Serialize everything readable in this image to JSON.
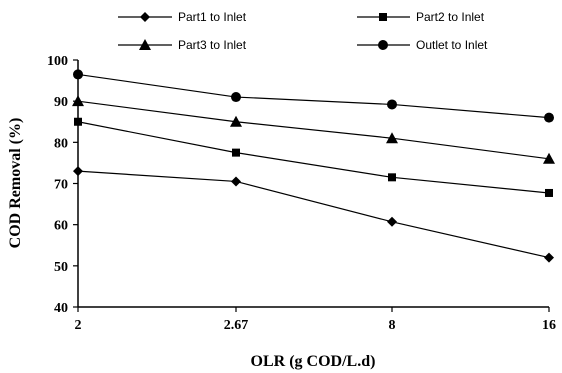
{
  "chart_data": {
    "type": "line",
    "xlabel": "OLR (g COD/L.d)",
    "ylabel": "COD Removal (%)",
    "categories": [
      "2",
      "2.67",
      "8",
      "16"
    ],
    "ylim": [
      40,
      100
    ],
    "yticks": [
      "40",
      "50",
      "60",
      "70",
      "80",
      "90",
      "100"
    ],
    "grid": false,
    "legend_position": "top",
    "series": [
      {
        "name": "Part1 to Inlet",
        "marker": "diamond",
        "values": [
          73,
          70.5,
          60.7,
          52
        ]
      },
      {
        "name": "Part2 to Inlet",
        "marker": "square",
        "values": [
          85,
          77.5,
          71.5,
          67.7
        ]
      },
      {
        "name": "Part3 to Inlet",
        "marker": "triangle",
        "values": [
          90,
          85,
          81,
          76
        ]
      },
      {
        "name": "Outlet to Inlet",
        "marker": "circle",
        "values": [
          96.5,
          91,
          89.2,
          86
        ]
      }
    ]
  }
}
